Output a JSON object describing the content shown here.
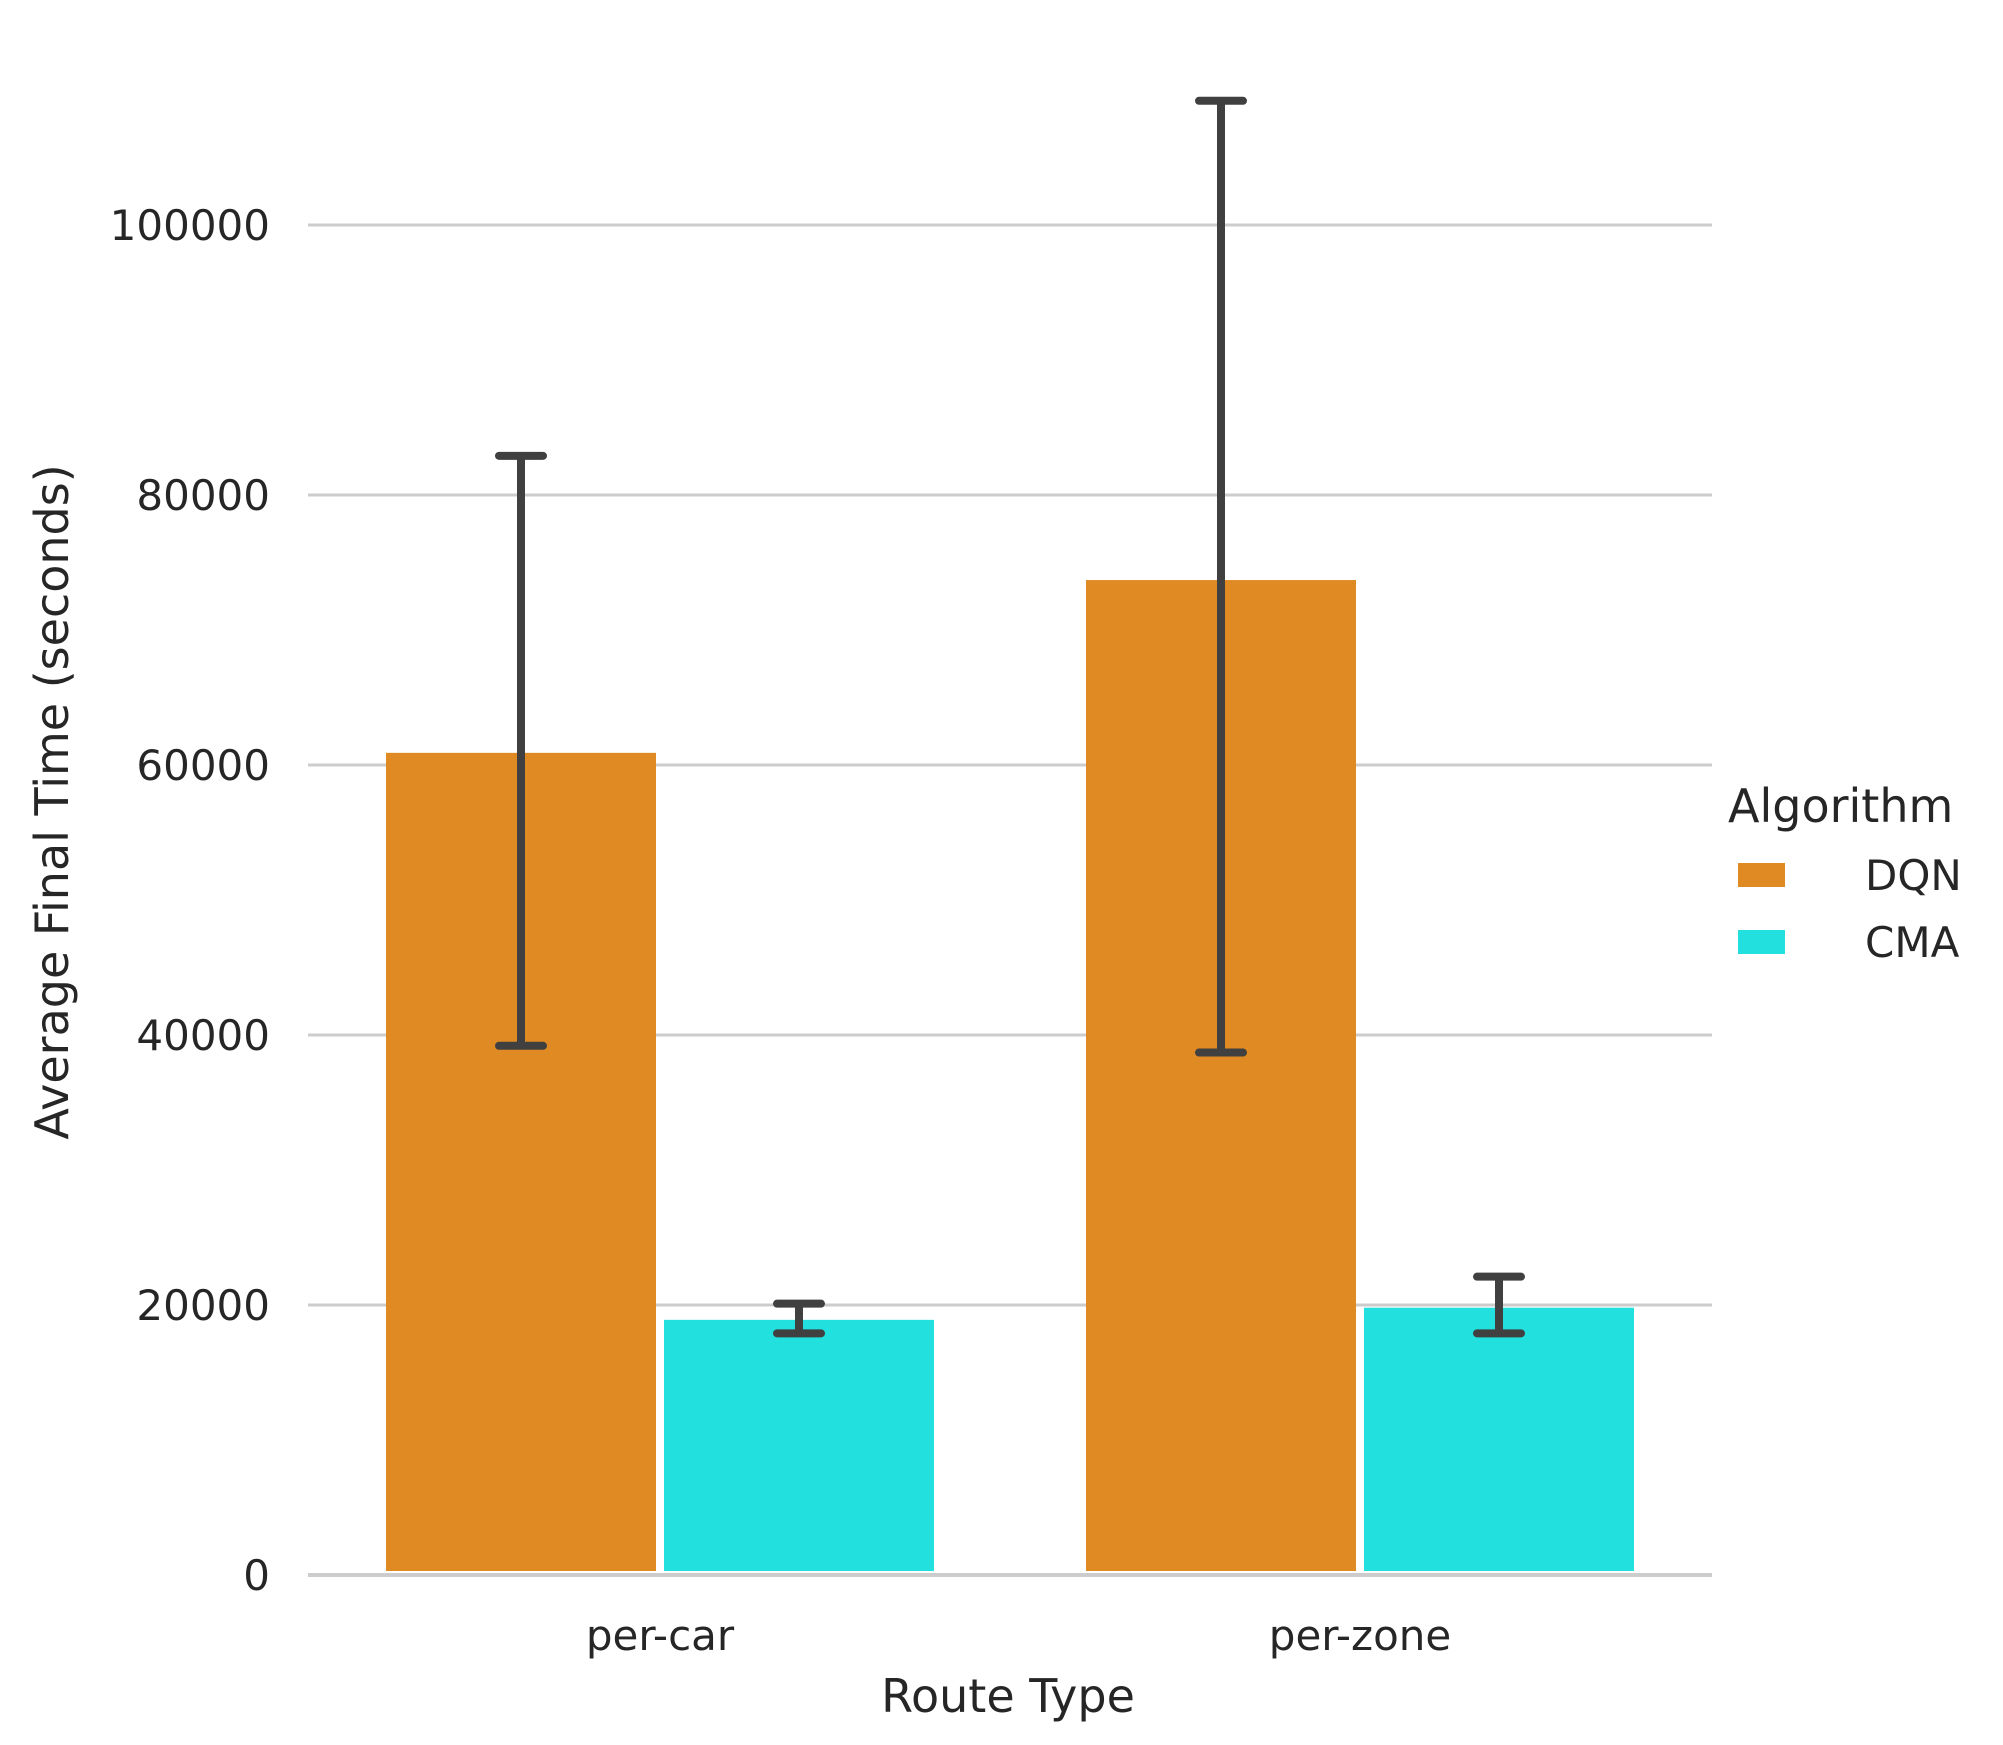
{
  "chart_data": {
    "type": "bar",
    "title": "",
    "xlabel": "Route Type",
    "ylabel": "Average Final Time (seconds)",
    "ylim": [
      0,
      110000
    ],
    "yticks": [
      0,
      20000,
      40000,
      60000,
      80000,
      100000
    ],
    "categories": [
      "per-car",
      "per-zone"
    ],
    "grid": "horizontal",
    "legend": {
      "title": "Algorithm",
      "placement": "right"
    },
    "series": [
      {
        "name": "DQN",
        "color": "#df8a22",
        "values": [
          60900,
          73700
        ],
        "error_low": [
          39200,
          38700
        ],
        "error_high": [
          82900,
          109200
        ]
      },
      {
        "name": "CMA",
        "color": "#22e0de",
        "values": [
          18900,
          19800
        ],
        "error_low": [
          17900,
          17900
        ],
        "error_high": [
          20100,
          22100
        ]
      }
    ],
    "colors": {
      "grid": "#cccccc",
      "error_bar": "#404040",
      "text": "#262626"
    }
  }
}
